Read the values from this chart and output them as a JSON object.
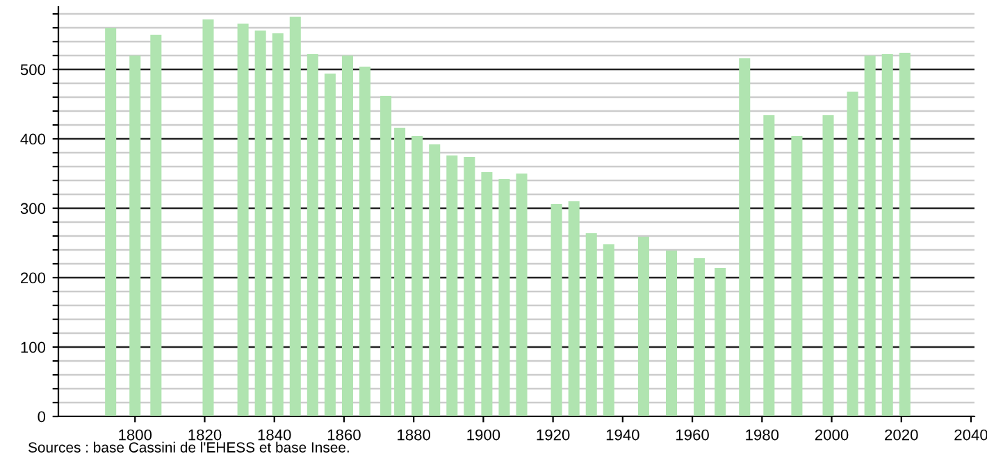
{
  "chart_data": {
    "type": "bar",
    "x": [
      1793,
      1800,
      1806,
      1821,
      1831,
      1836,
      1841,
      1846,
      1851,
      1856,
      1861,
      1866,
      1872,
      1876,
      1881,
      1886,
      1891,
      1896,
      1901,
      1906,
      1911,
      1921,
      1926,
      1931,
      1936,
      1946,
      1954,
      1962,
      1968,
      1975,
      1982,
      1990,
      1999,
      2006,
      2011,
      2016,
      2021
    ],
    "values": [
      560,
      520,
      550,
      572,
      566,
      556,
      552,
      576,
      522,
      494,
      520,
      504,
      462,
      416,
      404,
      392,
      376,
      374,
      352,
      342,
      350,
      306,
      310,
      264,
      248,
      259,
      239,
      228,
      214,
      516,
      434,
      404,
      434,
      468,
      520,
      522,
      524
    ],
    "color": "#b0e4b0",
    "xlim": [
      1778,
      2041
    ],
    "xticks": [
      1800,
      1820,
      1840,
      1860,
      1880,
      1900,
      1920,
      1940,
      1960,
      1980,
      2000,
      2020,
      2040
    ],
    "ylim": [
      0,
      590
    ],
    "yticks": [
      0,
      {
        "value": 20,
        "label": null
      },
      {
        "value": 40,
        "label": null
      },
      {
        "value": 60,
        "label": null
      },
      {
        "value": 80,
        "label": null
      },
      100,
      {
        "value": 120,
        "label": null
      },
      {
        "value": 140,
        "label": null
      },
      {
        "value": 160,
        "label": null
      },
      {
        "value": 180,
        "label": null
      },
      200,
      {
        "value": 220,
        "label": null
      },
      {
        "value": 240,
        "label": null
      },
      {
        "value": 260,
        "label": null
      },
      {
        "value": 280,
        "label": null
      },
      300,
      {
        "value": 320,
        "label": null
      },
      {
        "value": 340,
        "label": null
      },
      {
        "value": 360,
        "label": null
      },
      {
        "value": 380,
        "label": null
      },
      400,
      {
        "value": 420,
        "label": null
      },
      {
        "value": 440,
        "label": null
      },
      {
        "value": 460,
        "label": null
      },
      {
        "value": 480,
        "label": null
      },
      500,
      {
        "value": 520,
        "label": null
      },
      {
        "value": 540,
        "label": null
      },
      {
        "value": 560,
        "label": null
      },
      {
        "value": 580,
        "label": null
      }
    ],
    "grid": "y",
    "annotations": [
      "Sources : base Cassini de l'EHESS et base Insee."
    ]
  }
}
